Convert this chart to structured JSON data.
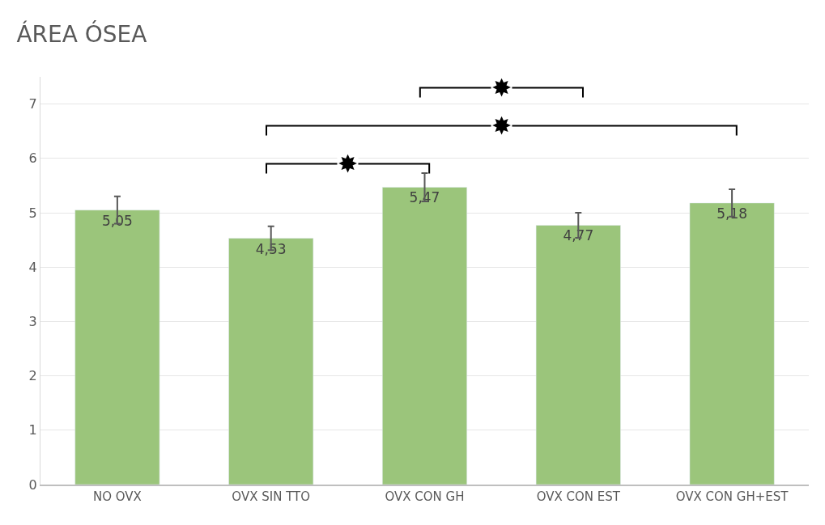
{
  "chart_data": {
    "type": "bar",
    "title": "ÁREA ÓSEA",
    "categories": [
      "NO OVX",
      "OVX SIN TTO",
      "OVX CON GH",
      "OVX CON EST",
      "OVX CON GH+EST"
    ],
    "values": [
      5.05,
      4.53,
      5.47,
      4.77,
      5.18
    ],
    "value_labels": [
      "5,05",
      "4,53",
      "5,47",
      "4,77",
      "5,18"
    ],
    "errors": [
      0.25,
      0.22,
      0.26,
      0.23,
      0.25
    ],
    "color": "#9bc57b",
    "ylim": [
      0,
      7.5
    ],
    "yticks": [
      0,
      1,
      2,
      3,
      4,
      5,
      6,
      7
    ],
    "grid": "y",
    "legend": false,
    "annotations": [
      "✸",
      "✸",
      "✸"
    ]
  }
}
